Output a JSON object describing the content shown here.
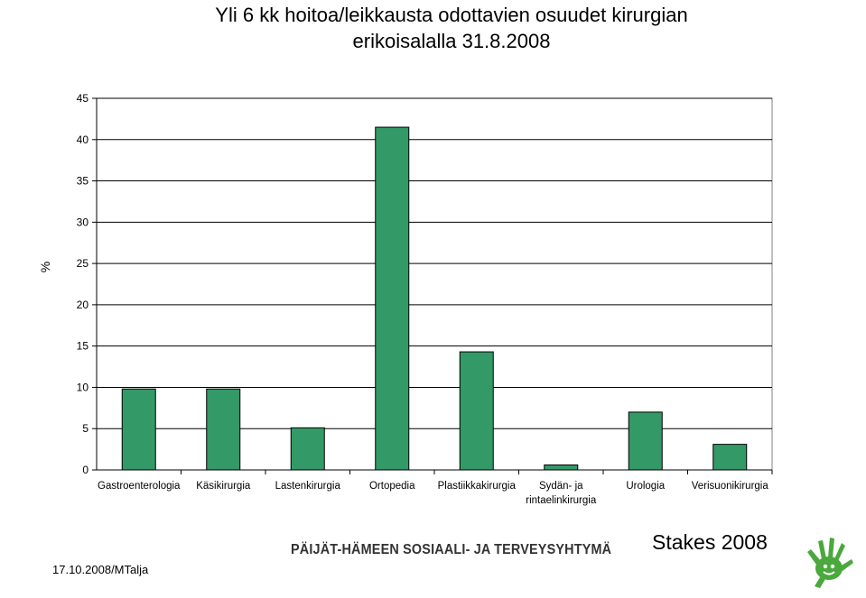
{
  "title_line1": "Yli 6 kk hoitoa/leikkausta odottavien osuudet kirurgian",
  "title_line2": "erikoisalalla 31.8.2008",
  "chart_data": {
    "type": "bar",
    "ylabel": "%",
    "ylim": [
      0,
      45
    ],
    "yticks": [
      0,
      5,
      10,
      15,
      20,
      25,
      30,
      35,
      40,
      45
    ],
    "grid": true,
    "categories": [
      [
        "Gastroenterologia"
      ],
      [
        "Käsikirurgia"
      ],
      [
        "Lastenkirurgia"
      ],
      [
        "Ortopedia"
      ],
      [
        "Plastiikkakirurgia"
      ],
      [
        "Sydän- ja",
        "rintaelinkirurgia"
      ],
      [
        "Urologia"
      ],
      [
        "Verisuonikirurgia"
      ]
    ],
    "values": [
      9.8,
      9.8,
      5.1,
      41.5,
      14.3,
      0.6,
      7.0,
      3.1
    ],
    "bar_color": "#339966"
  },
  "footer": {
    "date_author": "17.10.2008/MTalja",
    "organization": "PÄIJÄT-HÄMEEN SOSIAALI- JA TERVEYSYHTYMÄ",
    "source": "Stakes 2008"
  },
  "logo_icon": "green-hand-icon"
}
